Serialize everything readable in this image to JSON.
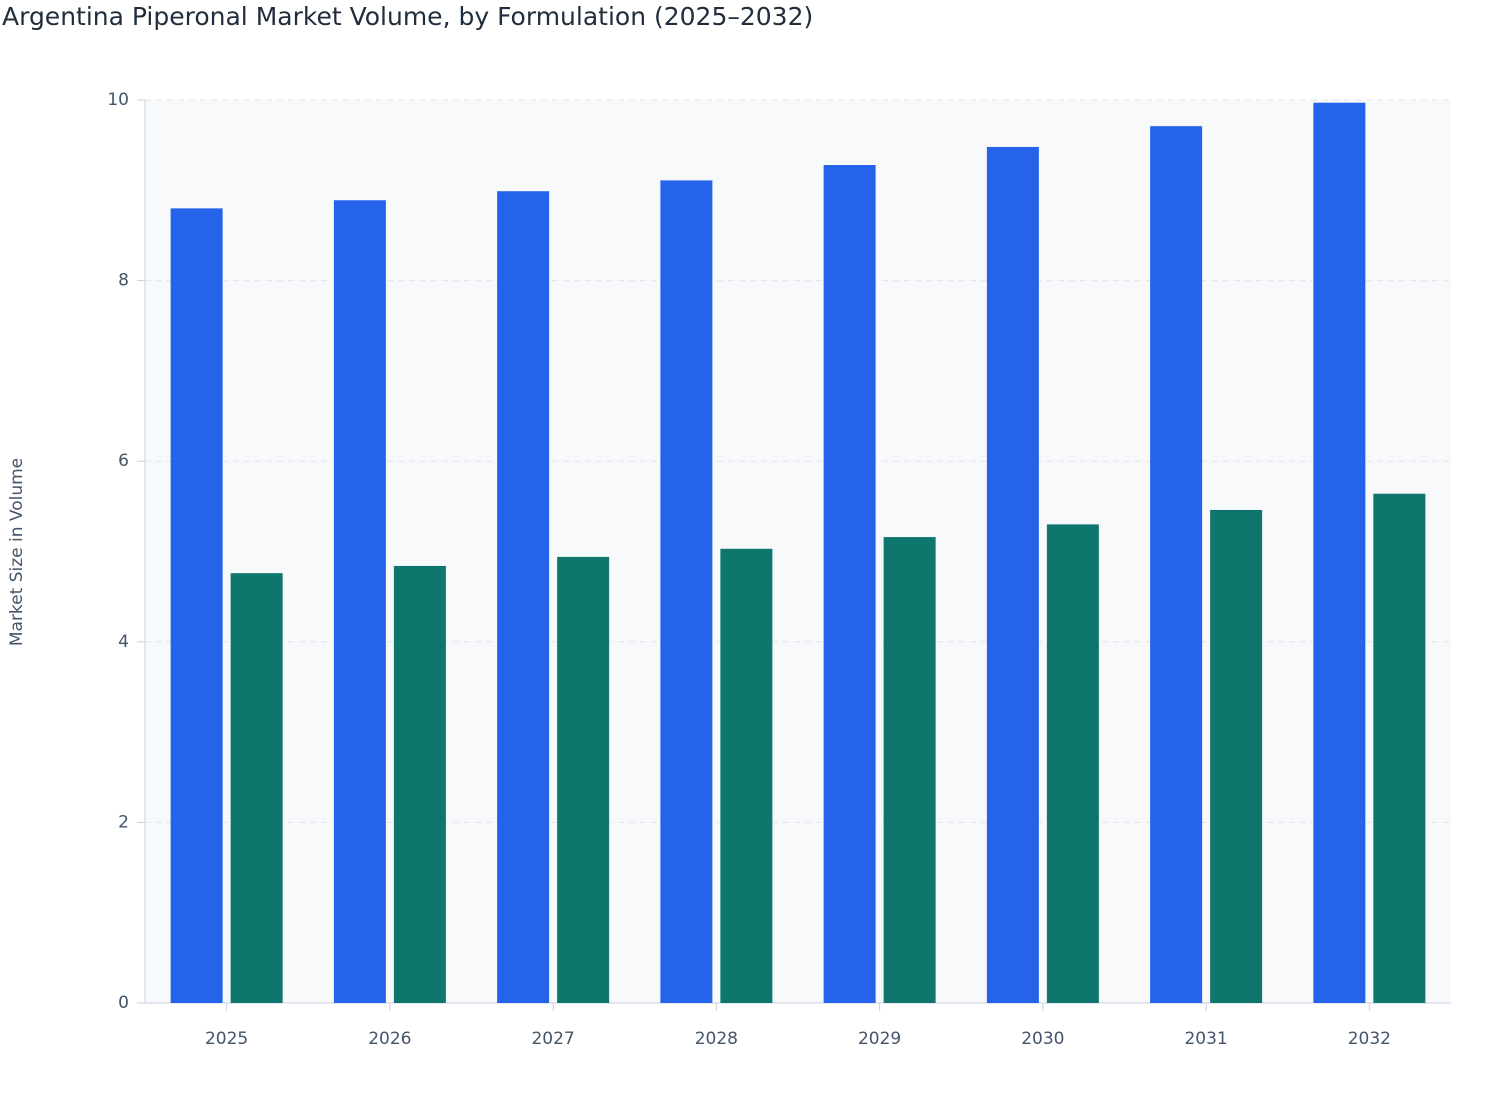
{
  "chart_data": {
    "type": "bar",
    "title": "Argentina Piperonal Market Volume, by Formulation (2025–2032)",
    "y_label": "Market Size in Volume",
    "categories": [
      "2025",
      "2026",
      "2027",
      "2028",
      "2029",
      "2030",
      "2031",
      "2032"
    ],
    "series": [
      {
        "color": "#2563eb",
        "values": [
          8.8,
          8.89,
          8.99,
          9.11,
          9.28,
          9.48,
          9.71,
          9.97
        ]
      },
      {
        "color": "#0f766e",
        "values": [
          4.76,
          4.84,
          4.94,
          5.03,
          5.16,
          5.3,
          5.46,
          5.64
        ]
      }
    ],
    "ylim": [
      0,
      10
    ],
    "yticks": [
      0,
      2,
      4,
      6,
      8,
      10
    ],
    "grid": true
  }
}
